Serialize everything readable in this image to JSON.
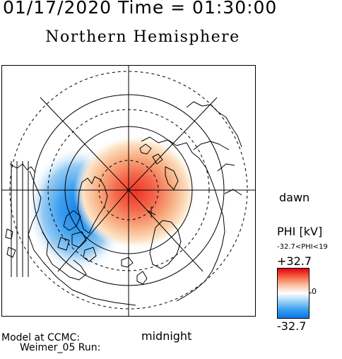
{
  "header": {
    "datetime": "01/17/2020 Time = 01:30:00",
    "hemisphere": "Northern Hemisphere"
  },
  "map": {
    "dawn_label": "dawn",
    "midnight_label": "midnight",
    "projection": "polar-stereographic",
    "coastlines": true,
    "potential_pattern": {
      "positive_cell": "dawn side, near pole",
      "negative_cell": "dusk side"
    }
  },
  "colorbar": {
    "title": "PHI [kV]",
    "range_text": "-32.7<PHI<19",
    "max_label": "+32.7",
    "zero_label": "0",
    "min_label": "-32.7",
    "colors": {
      "max": "#e0001a",
      "mid": "#ffffff",
      "min": "#0a78e6"
    }
  },
  "footer": {
    "model": "Model at CCMC:",
    "run": "Weimer_05 Run:"
  }
}
